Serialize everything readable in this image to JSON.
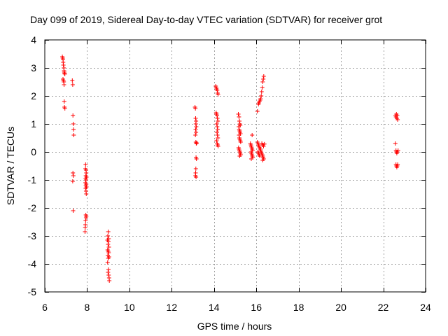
{
  "chart_data": {
    "type": "scatter",
    "title": "Day 099 of 2019, Sidereal Day-to-day VTEC variation (SDTVAR) for receiver grot",
    "xlabel": "GPS time / hours",
    "ylabel": "SDTVAR / TECUs",
    "xlim": [
      6,
      24
    ],
    "ylim": [
      -5,
      4
    ],
    "xticks": [
      6,
      8,
      10,
      12,
      14,
      16,
      18,
      20,
      22,
      24
    ],
    "yticks": [
      -5,
      -4,
      -3,
      -2,
      -1,
      0,
      1,
      2,
      3,
      4
    ],
    "grid": true,
    "marker": "+",
    "colors": {
      "points": "#ff0000",
      "grid": "#a0a0a0",
      "axes": "#000000"
    },
    "series": [
      {
        "name": "SDTVAR",
        "points": [
          [
            6.83,
            3.4
          ],
          [
            6.85,
            3.35
          ],
          [
            6.86,
            3.3
          ],
          [
            6.87,
            3.2
          ],
          [
            6.88,
            3.1
          ],
          [
            6.9,
            3.0
          ],
          [
            6.91,
            2.9
          ],
          [
            6.92,
            2.85
          ],
          [
            6.93,
            2.8
          ],
          [
            6.95,
            2.78
          ],
          [
            6.86,
            2.6
          ],
          [
            6.88,
            2.55
          ],
          [
            6.9,
            2.5
          ],
          [
            6.91,
            2.4
          ],
          [
            6.92,
            1.8
          ],
          [
            6.93,
            1.6
          ],
          [
            6.95,
            1.55
          ],
          [
            7.3,
            2.55
          ],
          [
            7.32,
            2.4
          ],
          [
            7.33,
            1.3
          ],
          [
            7.35,
            1.0
          ],
          [
            7.36,
            0.8
          ],
          [
            7.37,
            0.6
          ],
          [
            7.33,
            -0.75
          ],
          [
            7.35,
            -0.85
          ],
          [
            7.32,
            -1.05
          ],
          [
            7.34,
            -2.1
          ],
          [
            7.93,
            -0.45
          ],
          [
            7.92,
            -0.6
          ],
          [
            7.95,
            -0.65
          ],
          [
            7.96,
            -0.75
          ],
          [
            7.94,
            -0.85
          ],
          [
            7.97,
            -0.9
          ],
          [
            7.93,
            -0.95
          ],
          [
            7.95,
            -1.0
          ],
          [
            7.92,
            -1.1
          ],
          [
            7.96,
            -1.15
          ],
          [
            7.94,
            -1.2
          ],
          [
            7.97,
            -1.25
          ],
          [
            7.93,
            -1.3
          ],
          [
            7.95,
            -1.4
          ],
          [
            7.96,
            -1.5
          ],
          [
            7.94,
            -2.25
          ],
          [
            7.96,
            -2.3
          ],
          [
            7.95,
            -2.35
          ],
          [
            7.93,
            -2.45
          ],
          [
            7.92,
            -2.6
          ],
          [
            7.91,
            -2.7
          ],
          [
            7.9,
            -2.85
          ],
          [
            9.0,
            -2.85
          ],
          [
            8.98,
            -3.0
          ],
          [
            9.02,
            -3.1
          ],
          [
            8.96,
            -3.15
          ],
          [
            9.01,
            -3.2
          ],
          [
            8.99,
            -3.3
          ],
          [
            9.03,
            -3.4
          ],
          [
            8.97,
            -3.5
          ],
          [
            9.0,
            -3.55
          ],
          [
            9.02,
            -3.6
          ],
          [
            8.98,
            -3.7
          ],
          [
            9.04,
            -3.75
          ],
          [
            9.0,
            -3.8
          ],
          [
            8.97,
            -3.95
          ],
          [
            9.01,
            -4.2
          ],
          [
            8.99,
            -4.3
          ],
          [
            9.02,
            -4.4
          ],
          [
            9.04,
            -4.5
          ],
          [
            9.05,
            -4.6
          ],
          [
            13.1,
            1.6
          ],
          [
            13.12,
            1.55
          ],
          [
            13.13,
            1.2
          ],
          [
            13.15,
            1.1
          ],
          [
            13.14,
            1.0
          ],
          [
            13.16,
            0.9
          ],
          [
            13.13,
            0.8
          ],
          [
            13.15,
            0.7
          ],
          [
            13.12,
            0.6
          ],
          [
            13.14,
            0.35
          ],
          [
            13.16,
            0.3
          ],
          [
            13.18,
            0.32
          ],
          [
            13.15,
            -0.2
          ],
          [
            13.17,
            -0.25
          ],
          [
            13.14,
            -0.6
          ],
          [
            13.13,
            -0.75
          ],
          [
            13.12,
            -0.85
          ],
          [
            13.15,
            -0.9
          ],
          [
            14.08,
            2.35
          ],
          [
            14.1,
            2.3
          ],
          [
            14.12,
            2.25
          ],
          [
            14.15,
            2.2
          ],
          [
            14.17,
            2.1
          ],
          [
            14.19,
            2.05
          ],
          [
            14.1,
            1.4
          ],
          [
            14.12,
            1.35
          ],
          [
            14.14,
            1.3
          ],
          [
            14.16,
            1.2
          ],
          [
            14.18,
            1.1
          ],
          [
            14.13,
            1.0
          ],
          [
            14.15,
            0.9
          ],
          [
            14.17,
            0.8
          ],
          [
            14.14,
            0.7
          ],
          [
            14.16,
            0.6
          ],
          [
            14.18,
            0.5
          ],
          [
            14.12,
            0.4
          ],
          [
            14.15,
            0.3
          ],
          [
            14.17,
            0.25
          ],
          [
            14.19,
            0.2
          ],
          [
            15.15,
            1.35
          ],
          [
            15.18,
            1.25
          ],
          [
            15.2,
            1.1
          ],
          [
            15.22,
            1.0
          ],
          [
            15.24,
            0.95
          ],
          [
            15.17,
            0.9
          ],
          [
            15.19,
            0.8
          ],
          [
            15.21,
            0.75
          ],
          [
            15.23,
            0.7
          ],
          [
            15.25,
            0.65
          ],
          [
            15.18,
            0.6
          ],
          [
            15.2,
            0.5
          ],
          [
            15.22,
            0.45
          ],
          [
            15.24,
            0.4
          ],
          [
            15.26,
            0.35
          ],
          [
            15.16,
            0.15
          ],
          [
            15.18,
            0.1
          ],
          [
            15.2,
            0.05
          ],
          [
            15.22,
            0.0
          ],
          [
            15.24,
            -0.05
          ],
          [
            15.26,
            -0.1
          ],
          [
            15.21,
            -0.15
          ],
          [
            15.8,
            0.6
          ],
          [
            15.72,
            0.3
          ],
          [
            15.74,
            0.25
          ],
          [
            15.76,
            0.2
          ],
          [
            15.78,
            0.15
          ],
          [
            15.8,
            0.1
          ],
          [
            15.82,
            0.05
          ],
          [
            15.75,
            0.0
          ],
          [
            15.77,
            -0.05
          ],
          [
            15.79,
            -0.1
          ],
          [
            15.81,
            -0.15
          ],
          [
            15.83,
            -0.2
          ],
          [
            15.76,
            -0.25
          ],
          [
            16.35,
            2.7
          ],
          [
            16.33,
            2.6
          ],
          [
            16.3,
            2.5
          ],
          [
            16.28,
            2.3
          ],
          [
            16.25,
            2.15
          ],
          [
            16.23,
            2.0
          ],
          [
            16.2,
            1.9
          ],
          [
            16.18,
            1.85
          ],
          [
            16.15,
            1.8
          ],
          [
            16.12,
            1.75
          ],
          [
            16.1,
            1.7
          ],
          [
            16.05,
            1.45
          ],
          [
            16.05,
            0.35
          ],
          [
            16.08,
            0.3
          ],
          [
            16.1,
            0.25
          ],
          [
            16.12,
            0.2
          ],
          [
            16.15,
            0.15
          ],
          [
            16.18,
            0.1
          ],
          [
            16.2,
            0.05
          ],
          [
            16.22,
            0.0
          ],
          [
            16.25,
            -0.05
          ],
          [
            16.28,
            -0.1
          ],
          [
            16.3,
            -0.15
          ],
          [
            16.32,
            -0.2
          ],
          [
            16.35,
            -0.25
          ],
          [
            16.3,
            -0.3
          ],
          [
            16.26,
            0.3
          ],
          [
            16.3,
            0.25
          ],
          [
            16.34,
            0.2
          ],
          [
            16.38,
            0.28
          ],
          [
            16.07,
            0.0
          ],
          [
            16.1,
            -0.05
          ],
          [
            16.13,
            -0.1
          ],
          [
            16.16,
            -0.15
          ],
          [
            16.2,
            0.1
          ],
          [
            22.58,
            1.3
          ],
          [
            22.6,
            1.25
          ],
          [
            22.62,
            1.35
          ],
          [
            22.64,
            1.2
          ],
          [
            22.66,
            1.3
          ],
          [
            22.68,
            1.15
          ],
          [
            22.57,
            0.3
          ],
          [
            22.6,
            0.05
          ],
          [
            22.62,
            0.0
          ],
          [
            22.64,
            -0.05
          ],
          [
            22.66,
            0.0
          ],
          [
            22.7,
            0.05
          ],
          [
            22.6,
            -0.45
          ],
          [
            22.62,
            -0.5
          ],
          [
            22.64,
            -0.55
          ],
          [
            22.66,
            -0.5
          ],
          [
            22.68,
            -0.45
          ]
        ]
      }
    ]
  }
}
